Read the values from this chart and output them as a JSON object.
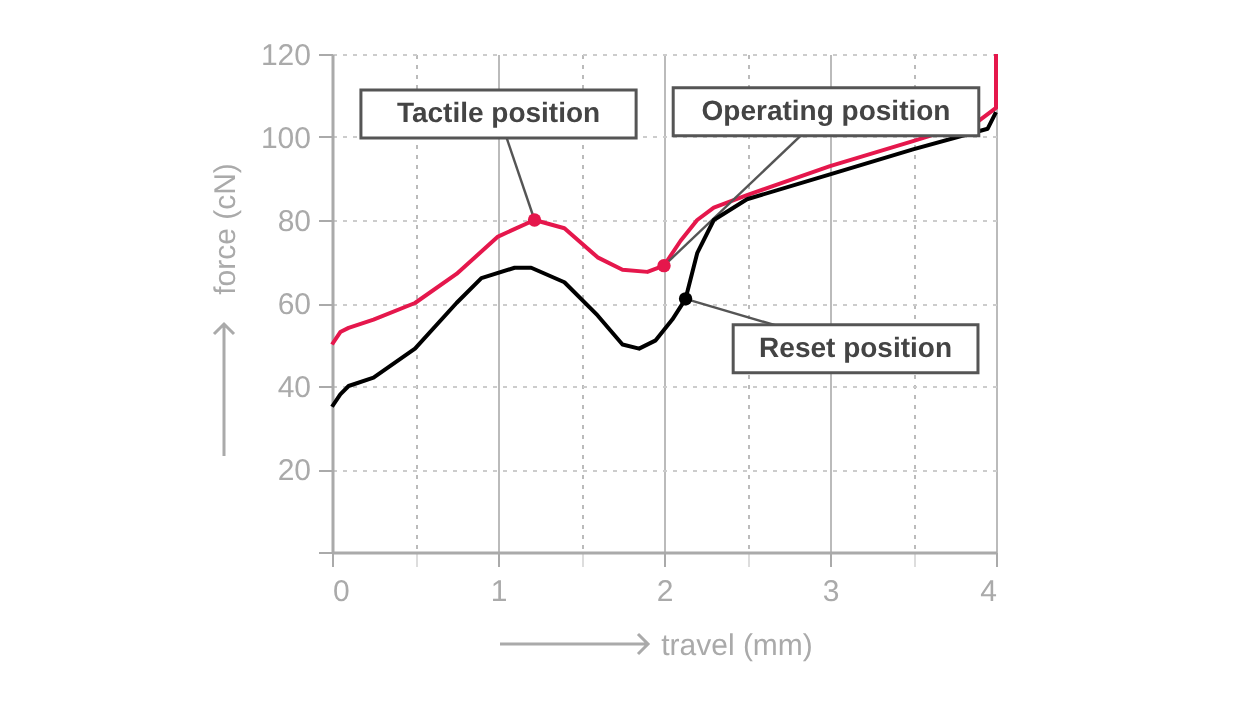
{
  "chart_data": {
    "type": "line",
    "xlabel": "travel (mm)",
    "ylabel": "force (cN)",
    "xlim": [
      0,
      4
    ],
    "ylim": [
      0,
      120
    ],
    "xticks": [
      0,
      {
        "value": 0.5,
        "label": null
      },
      1,
      {
        "value": 1.5,
        "label": null
      },
      2,
      {
        "value": 2.5,
        "label": null
      },
      3,
      {
        "value": 3.5,
        "label": null
      },
      4
    ],
    "yticks": [
      {
        "value": 0,
        "label": null
      },
      20,
      40,
      60,
      80,
      100,
      120
    ],
    "grid": true,
    "series": [
      {
        "color": "#e5174c",
        "x": [
          0,
          0.05,
          0.1,
          0.25,
          0.5,
          0.75,
          1.0,
          1.22,
          1.4,
          1.6,
          1.75,
          1.9,
          2.0,
          2.1,
          2.2,
          2.3,
          2.5,
          3.0,
          3.5,
          3.9,
          4.0,
          4.0
        ],
        "values": [
          50,
          53,
          54,
          56,
          60,
          67,
          76,
          80,
          78,
          71,
          68,
          67.5,
          69,
          75,
          80,
          83,
          86,
          93,
          99,
          104,
          107,
          120
        ]
      },
      {
        "color": "#000000",
        "x": [
          0,
          0.05,
          0.1,
          0.25,
          0.5,
          0.75,
          0.9,
          1.1,
          1.2,
          1.4,
          1.6,
          1.75,
          1.85,
          1.95,
          2.05,
          2.13,
          2.2,
          2.3,
          2.5,
          3.0,
          3.5,
          3.95,
          4.0
        ],
        "values": [
          35,
          38,
          40,
          42,
          49,
          60,
          66,
          68.5,
          68.5,
          65,
          57,
          50,
          49,
          51,
          56,
          61,
          72,
          80,
          85,
          91,
          97,
          102,
          106
        ]
      },
      {
        "type": "scatter",
        "color": "#e5174c",
        "x": [
          1.22,
          2.0
        ],
        "values": [
          80,
          69
        ]
      },
      {
        "type": "scatter",
        "color": "#000000",
        "x": [
          2.13
        ],
        "values": [
          61
        ]
      }
    ],
    "annotations": [
      {
        "text": "Tactile position",
        "x": 1.22,
        "y": 80
      },
      {
        "text": "Operating position",
        "x": 2.0,
        "y": 69
      },
      {
        "text": "Reset position",
        "x": 2.13,
        "y": 61
      }
    ]
  }
}
